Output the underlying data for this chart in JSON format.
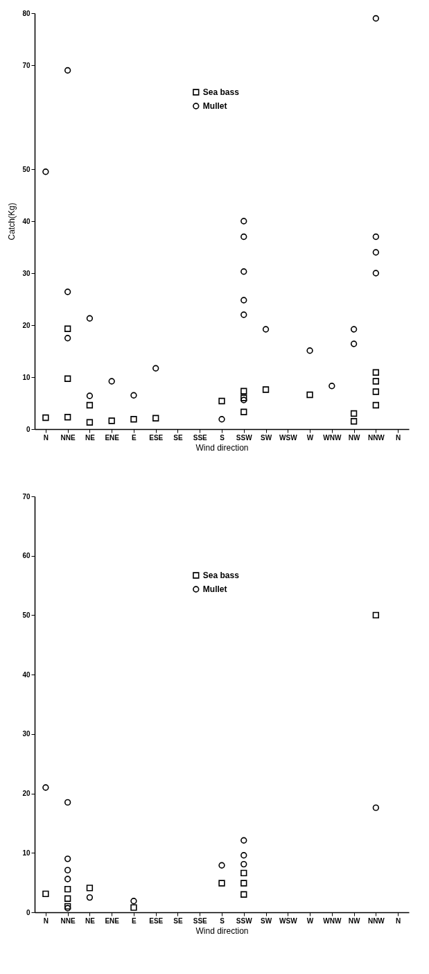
{
  "chart_data": [
    {
      "type": "scatter",
      "xlabel": "Wind direction",
      "ylabel": "Catch(Kg)",
      "categories": [
        "N",
        "NNE",
        "NE",
        "ENE",
        "E",
        "ESE",
        "SE",
        "SSE",
        "S",
        "SSW",
        "SW",
        "WSW",
        "W",
        "WNW",
        "NW",
        "NNW",
        "N"
      ],
      "ylim": [
        0,
        80
      ],
      "yticks": [
        0,
        10,
        20,
        30,
        40,
        50,
        70,
        80
      ],
      "legend": "top",
      "series": [
        {
          "name": "Sea bass",
          "color": "#000000",
          "marker": "square",
          "x": [
            "N",
            "NNE",
            "NNE",
            "NNE",
            "NE",
            "NE",
            "ENE",
            "E",
            "ESE",
            "S",
            "SSW",
            "SSW",
            "SSW",
            "SW",
            "W",
            "NW",
            "NW",
            "NNW",
            "NNW",
            "NNW",
            "NNW"
          ],
          "values": [
            2.2,
            19.3,
            9.7,
            2.3,
            4.6,
            1.3,
            1.6,
            1.9,
            2.1,
            5.4,
            7.3,
            6.0,
            3.3,
            7.6,
            6.6,
            3.0,
            1.5,
            10.9,
            9.2,
            7.2,
            4.6
          ]
        },
        {
          "name": "Mullet",
          "color": "#000000",
          "marker": "circle",
          "x": [
            "N",
            "NNE",
            "NNE",
            "NNE",
            "NE",
            "NE",
            "ENE",
            "E",
            "ESE",
            "S",
            "SSW",
            "SSW",
            "SSW",
            "SSW",
            "SSW",
            "SSW",
            "SW",
            "W",
            "WNW",
            "NW",
            "NW",
            "NNW",
            "NNW",
            "NNW",
            "NNW"
          ],
          "values": [
            49.5,
            69,
            26.4,
            17.5,
            21.3,
            6.4,
            9.2,
            6.5,
            11.7,
            1.9,
            40,
            37,
            30.3,
            24.8,
            22.0,
            5.6,
            19.2,
            15.1,
            8.3,
            19.2,
            16.4,
            79,
            37,
            34,
            30
          ]
        }
      ]
    },
    {
      "type": "scatter",
      "xlabel": "Wind direction",
      "categories": [
        "N",
        "NNE",
        "NE",
        "ENE",
        "E",
        "ESE",
        "SE",
        "SSE",
        "S",
        "SSW",
        "SW",
        "WSW",
        "W",
        "WNW",
        "NW",
        "NNW",
        "N"
      ],
      "ylim": [
        0,
        70
      ],
      "yticks": [
        0,
        10,
        20,
        30,
        40,
        50,
        60,
        70
      ],
      "legend": "top",
      "series": [
        {
          "name": "Sea bass",
          "color": "#000000",
          "marker": "square",
          "x": [
            "N",
            "NNE",
            "NNE",
            "NNE",
            "NE",
            "E",
            "S",
            "SSW",
            "SSW",
            "SSW",
            "NNW"
          ],
          "values": [
            3.1,
            3.9,
            2.3,
            1.0,
            4.1,
            0.8,
            4.9,
            6.6,
            4.9,
            3.0,
            50
          ]
        },
        {
          "name": "Mullet",
          "color": "#000000",
          "marker": "circle",
          "x": [
            "N",
            "NNE",
            "NNE",
            "NNE",
            "NNE",
            "NNE",
            "NE",
            "E",
            "S",
            "SSW",
            "SSW",
            "SSW",
            "NNW"
          ],
          "values": [
            21,
            18.5,
            9.0,
            7.1,
            5.6,
            0.7,
            2.5,
            1.9,
            7.9,
            12.1,
            9.6,
            8.1,
            17.6
          ]
        }
      ]
    }
  ]
}
